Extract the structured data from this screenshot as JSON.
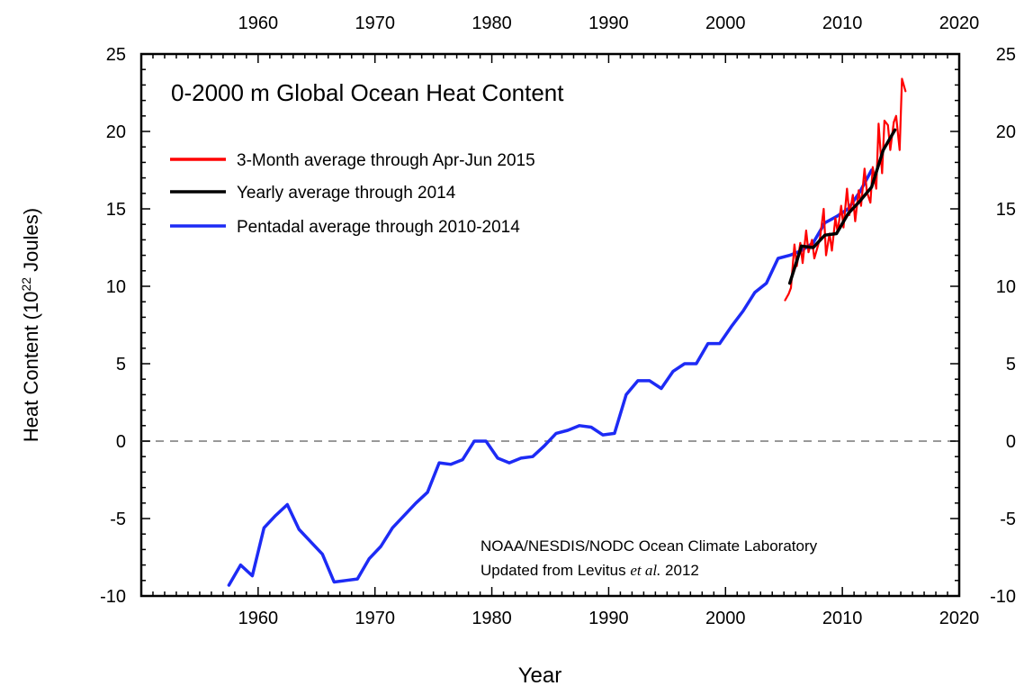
{
  "chart_data": {
    "type": "line",
    "title": "0-2000 m Global Ocean Heat Content",
    "xlabel": "Year",
    "ylabel_main": "Heat Content (10",
    "ylabel_sup": "22",
    "ylabel_tail": " Joules)",
    "xlim": [
      1950,
      2020
    ],
    "ylim": [
      -10,
      25
    ],
    "xticks": [
      1960,
      1970,
      1980,
      1990,
      2000,
      2010,
      2020
    ],
    "yticks": [
      -10,
      -5,
      0,
      5,
      10,
      15,
      20,
      25
    ],
    "zero_line": {
      "y": 0,
      "style": "dashed",
      "color": "#999999"
    },
    "legend_position": "top-left",
    "credit_line1": "NOAA/NESDIS/NODC Ocean Climate Laboratory",
    "credit_line2_pre": "Updated from Levitus ",
    "credit_line2_ital": "et al.",
    "credit_line2_post": " 2012",
    "series": [
      {
        "name": "3-Month average through Apr-Jun 2015",
        "color": "#ff0000",
        "x": [
          2005.1,
          2005.4,
          2005.6,
          2005.9,
          2006.1,
          2006.4,
          2006.6,
          2006.9,
          2007.1,
          2007.4,
          2007.6,
          2007.9,
          2008.1,
          2008.4,
          2008.6,
          2008.9,
          2009.1,
          2009.4,
          2009.6,
          2009.9,
          2010.1,
          2010.4,
          2010.6,
          2010.9,
          2011.1,
          2011.4,
          2011.6,
          2011.9,
          2012.1,
          2012.4,
          2012.6,
          2012.9,
          2013.1,
          2013.4,
          2013.6,
          2013.9,
          2014.1,
          2014.4,
          2014.6,
          2014.9,
          2015.1,
          2015.4
        ],
        "y": [
          9.1,
          9.5,
          9.9,
          12.7,
          11.3,
          12.8,
          11.5,
          13.6,
          12.2,
          13.0,
          11.8,
          12.6,
          13.2,
          15.0,
          12.0,
          13.4,
          12.3,
          14.4,
          13.5,
          15.2,
          13.8,
          16.3,
          14.6,
          15.9,
          14.2,
          16.2,
          15.2,
          17.6,
          16.1,
          15.4,
          17.7,
          16.3,
          20.5,
          17.3,
          20.7,
          20.4,
          18.8,
          20.6,
          21.0,
          18.8,
          23.4,
          22.6
        ]
      },
      {
        "name": "Yearly average through 2014",
        "color": "#000000",
        "x": [
          2005.5,
          2006.5,
          2007.5,
          2008.5,
          2009.5,
          2010.5,
          2011.5,
          2012.5,
          2013.5,
          2014.5
        ],
        "y": [
          10.2,
          12.6,
          12.5,
          13.3,
          13.4,
          14.7,
          15.5,
          16.4,
          18.8,
          20.1
        ]
      },
      {
        "name": "Pentadal average through 2010-2014",
        "color": "#1d2bf5",
        "x": [
          1957.5,
          1958.5,
          1959.5,
          1960.5,
          1961.5,
          1962.5,
          1963.5,
          1964.5,
          1965.5,
          1966.5,
          1967.5,
          1968.5,
          1969.5,
          1970.5,
          1971.5,
          1972.5,
          1973.5,
          1974.5,
          1975.5,
          1976.5,
          1977.5,
          1978.5,
          1979.5,
          1980.5,
          1981.5,
          1982.5,
          1983.5,
          1984.5,
          1985.5,
          1986.5,
          1987.5,
          1988.5,
          1989.5,
          1990.5,
          1991.5,
          1992.5,
          1993.5,
          1994.5,
          1995.5,
          1996.5,
          1997.5,
          1998.5,
          1999.5,
          2000.5,
          2001.5,
          2002.5,
          2003.5,
          2004.5,
          2005.5,
          2006.5,
          2007.5,
          2008.5,
          2009.5,
          2010.5,
          2011.5,
          2012.5
        ],
        "y": [
          -9.3,
          -8.0,
          -8.7,
          -5.6,
          -4.8,
          -4.1,
          -5.7,
          -6.5,
          -7.3,
          -9.1,
          -9.0,
          -8.9,
          -7.6,
          -6.8,
          -5.6,
          -4.8,
          -4.0,
          -3.3,
          -1.4,
          -1.5,
          -1.2,
          0.0,
          0.0,
          -1.1,
          -1.4,
          -1.1,
          -1.0,
          -0.3,
          0.5,
          0.7,
          1.0,
          0.9,
          0.4,
          0.5,
          3.0,
          3.9,
          3.9,
          3.4,
          4.5,
          5.0,
          5.0,
          6.3,
          6.3,
          7.4,
          8.4,
          9.6,
          10.2,
          11.8,
          12.0,
          12.3,
          12.8,
          14.1,
          14.5,
          15.0,
          16.1,
          17.5
        ]
      }
    ]
  }
}
